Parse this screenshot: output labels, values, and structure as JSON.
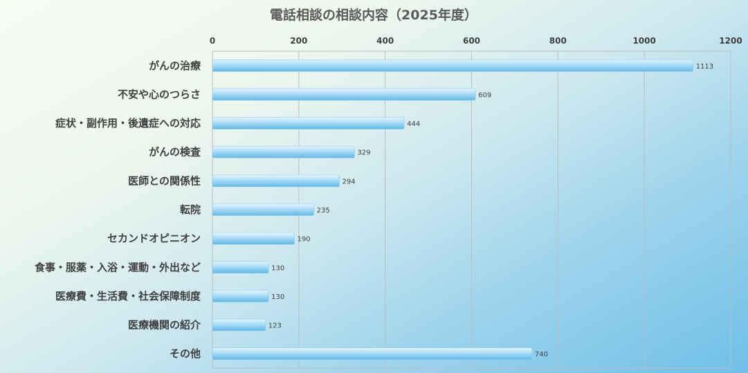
{
  "chart_data": {
    "type": "bar",
    "orientation": "horizontal",
    "title": "電話相談の相談内容（2025年度）",
    "categories": [
      "がんの治療",
      "不安や心のつらさ",
      "症状・副作用・後遺症への対応",
      "がんの検査",
      "医師との関係性",
      "転院",
      "セカンドオピニオン",
      "食事・服薬・入浴・運動・外出など",
      "医療費・生活費・社会保障制度",
      "医療機関の紹介",
      "その他"
    ],
    "values": [
      1113,
      609,
      444,
      329,
      294,
      235,
      190,
      130,
      130,
      123,
      740
    ],
    "data_labels": [
      "1113",
      "609",
      "444",
      "329",
      "294",
      "235",
      "190",
      "130",
      "130",
      "123",
      "740"
    ],
    "xlim": [
      0,
      1200
    ],
    "x_ticks": [
      "0",
      "200",
      "400",
      "600",
      "800",
      "1000",
      "1200"
    ],
    "x_axis_position": "top",
    "grid": true,
    "legend": "none",
    "colors": {
      "bar_light": "#e6f5fd",
      "bar_mid": "#a9dcf6",
      "bar_dark": "#62b8e6",
      "grid": "#bdbdbd",
      "title": "#5a5a5a"
    }
  }
}
